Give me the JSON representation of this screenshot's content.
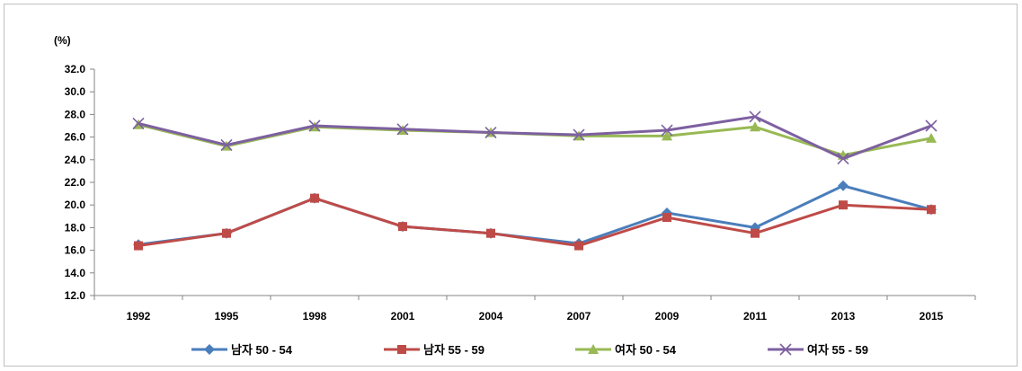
{
  "chart_data": {
    "type": "line",
    "unit_label": "(%)",
    "categories": [
      "1992",
      "1995",
      "1998",
      "2001",
      "2004",
      "2007",
      "2009",
      "2011",
      "2013",
      "2015"
    ],
    "ylim": [
      12.0,
      32.0
    ],
    "yticks": [
      "12.0",
      "14.0",
      "16.0",
      "18.0",
      "20.0",
      "22.0",
      "24.0",
      "26.0",
      "28.0",
      "30.0",
      "32.0"
    ],
    "grid": false,
    "legend_position": "bottom",
    "series": [
      {
        "name": "남자 50 - 54",
        "color": "#4a7ebb",
        "marker": "diamond",
        "values": [
          16.5,
          17.5,
          20.6,
          18.1,
          17.5,
          16.6,
          19.3,
          18.0,
          21.7,
          19.6
        ]
      },
      {
        "name": "남자 55 - 59",
        "color": "#be4b48",
        "marker": "square",
        "values": [
          16.4,
          17.5,
          20.6,
          18.1,
          17.5,
          16.4,
          18.9,
          17.5,
          20.0,
          19.6
        ]
      },
      {
        "name": "여자 50 - 54",
        "color": "#98b954",
        "marker": "triangle",
        "values": [
          27.1,
          25.2,
          26.9,
          26.6,
          26.4,
          26.1,
          26.1,
          26.9,
          24.4,
          25.9
        ]
      },
      {
        "name": "여자 55 - 59",
        "color": "#7d60a0",
        "marker": "x",
        "values": [
          27.2,
          25.3,
          27.0,
          26.7,
          26.4,
          26.2,
          26.6,
          27.8,
          24.1,
          27.0
        ]
      }
    ]
  }
}
